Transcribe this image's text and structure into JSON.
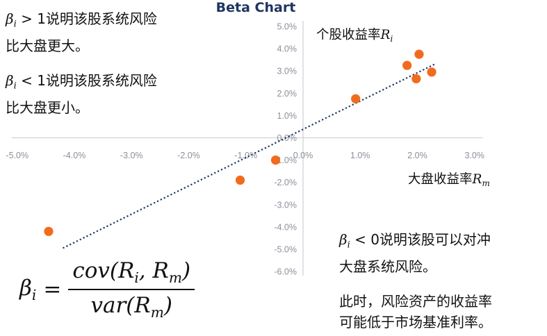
{
  "chart_data": {
    "type": "scatter",
    "title": "Beta Chart",
    "xlabel": "大盘收益率",
    "ylabel": "个股收益率",
    "xlim": [
      -5.0,
      3.0
    ],
    "ylim": [
      -6.0,
      5.0
    ],
    "x_ticks": [
      "-5.0%",
      "-4.0%",
      "-3.0%",
      "-2.0%",
      "-1.0%",
      "0.0%",
      "1.0%",
      "2.0%",
      "3.0%"
    ],
    "y_ticks": [
      "5.0%",
      "4.0%",
      "3.0%",
      "2.0%",
      "1.0%",
      "0.0%",
      "-1.0%",
      "-2.0%",
      "-3.0%",
      "-4.0%",
      "-5.0%",
      "-6.0%"
    ],
    "points": [
      {
        "x": -4.45,
        "y": -4.2
      },
      {
        "x": -1.1,
        "y": -1.9
      },
      {
        "x": -0.48,
        "y": -1.0
      },
      {
        "x": 0.92,
        "y": 1.75
      },
      {
        "x": 1.82,
        "y": 3.25
      },
      {
        "x": 1.98,
        "y": 2.65
      },
      {
        "x": 2.03,
        "y": 3.75
      },
      {
        "x": 2.25,
        "y": 2.95
      }
    ],
    "trendline": {
      "x": [
        -4.2,
        2.3
      ],
      "y": [
        -4.95,
        3.3
      ]
    },
    "grid": false,
    "point_color": "#f26b1d",
    "trend_color": "#1e3560",
    "axis_color": "#cfd3d9"
  },
  "notes": {
    "beta_gt_1": {
      "cond": " > 1",
      "line1": "说明该股系统风险",
      "line2": "比大盘更大。"
    },
    "beta_lt_1": {
      "cond": " < 1",
      "line1": "说明该股系统风险",
      "line2": "比大盘更小。"
    },
    "beta_lt_0": {
      "cond": " < 0",
      "line1": "说明该股可以对冲",
      "line2": "大盘系统风险。"
    },
    "risk_asset": {
      "line1": "此时，风险资产的收益率",
      "line2": "可能低于市场基准利率。"
    }
  },
  "formula": {
    "lhs": "β",
    "lhs_sub": "i",
    "eq": "=",
    "num": "cov(R",
    "num_sub1": "i",
    "num_mid": ", R",
    "num_sub2": "m",
    "num_end": ")",
    "den": "var(R",
    "den_sub": "m",
    "den_end": ")"
  },
  "symbols": {
    "beta": "β",
    "sub_i": "i",
    "r": "R",
    "sub_m": "m"
  }
}
